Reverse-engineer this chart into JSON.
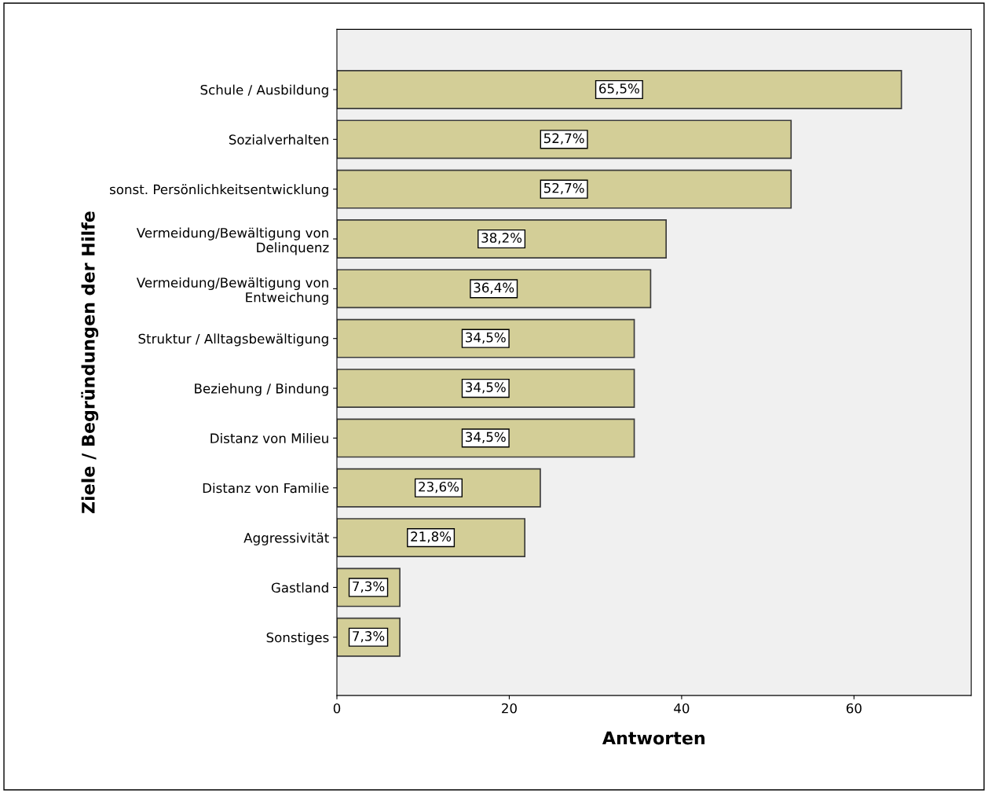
{
  "chart_data": {
    "type": "bar",
    "orientation": "horizontal",
    "xlabel": "Antworten",
    "ylabel": "Ziele / Begründungen der Hilfe",
    "categories": [
      "Schule / Ausbildung",
      "Sozialverhalten",
      "sonst. Persönlichkeitsentwicklung",
      "Vermeidung/Bewältigung von\nDelinquenz",
      "Vermeidung/Bewältigung von\nEntweichung",
      "Struktur / Alltagsbewältigung",
      "Beziehung / Bindung",
      "Distanz von Milieu",
      "Distanz von Familie",
      "Aggressivität",
      "Gastland",
      "Sonstiges"
    ],
    "values": [
      65.5,
      52.7,
      52.7,
      38.2,
      36.4,
      34.5,
      34.5,
      34.5,
      23.6,
      21.8,
      7.3,
      7.3
    ],
    "value_labels": [
      "65,5%",
      "52,7%",
      "52,7%",
      "38,2%",
      "36,4%",
      "34,5%",
      "34,5%",
      "34,5%",
      "23,6%",
      "21,8%",
      "7,3%",
      "7,3%"
    ],
    "color": "#d3ce97",
    "xlim": [
      0,
      73.6
    ],
    "xticks": [
      0,
      20,
      40,
      60
    ],
    "grid": false,
    "legend": false
  }
}
